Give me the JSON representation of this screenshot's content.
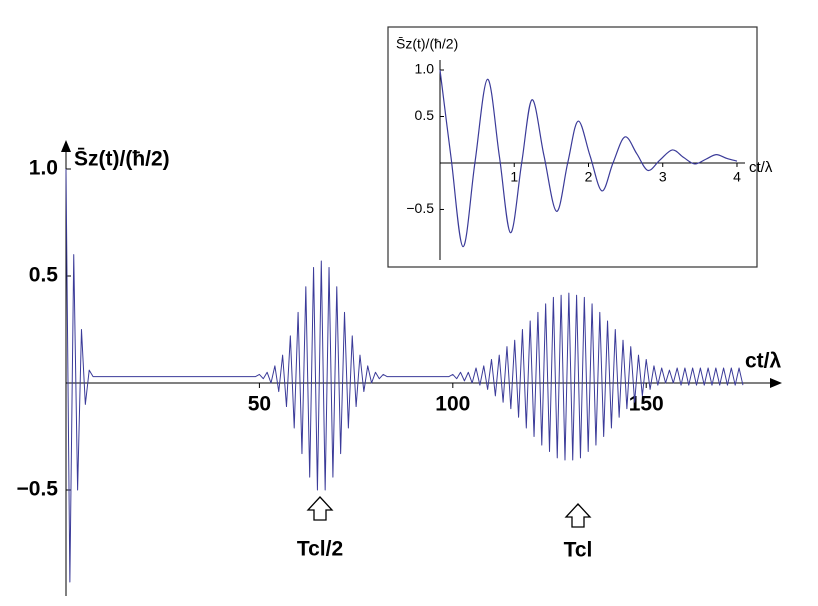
{
  "chart_data": [
    {
      "type": "line",
      "y_label": "S̄z(t)/(ħ/2)",
      "x_label": "ct/λ",
      "color": "#3b3b99",
      "x": [
        0,
        1,
        2,
        3,
        4,
        5,
        6,
        7,
        8,
        9,
        10,
        11,
        12,
        13,
        14,
        15,
        16,
        17,
        18,
        19,
        20,
        21,
        22,
        23,
        24,
        25,
        26,
        27,
        28,
        29,
        30,
        31,
        32,
        33,
        34,
        35,
        36,
        37,
        38,
        39,
        40,
        41,
        42,
        43,
        44,
        45,
        46,
        47,
        48,
        49,
        50,
        51,
        52,
        53,
        54,
        55,
        56,
        57,
        58,
        59,
        60,
        61,
        62,
        63,
        64,
        65,
        66,
        67,
        68,
        69,
        70,
        71,
        72,
        73,
        74,
        75,
        76,
        77,
        78,
        79,
        80,
        81,
        82,
        83,
        84,
        85,
        86,
        87,
        88,
        89,
        90,
        91,
        92,
        93,
        94,
        95,
        96,
        97,
        98,
        99,
        100,
        101,
        102,
        103,
        104,
        105,
        106,
        107,
        108,
        109,
        110,
        111,
        112,
        113,
        114,
        115,
        116,
        117,
        118,
        119,
        120,
        121,
        122,
        123,
        124,
        125,
        126,
        127,
        128,
        129,
        130,
        131,
        132,
        133,
        134,
        135,
        136,
        137,
        138,
        139,
        140,
        141,
        142,
        143,
        144,
        145,
        146,
        147,
        148,
        149,
        150,
        151,
        152,
        153,
        154,
        155,
        156,
        157,
        158,
        159,
        160,
        161,
        162,
        163,
        164,
        165,
        166,
        167,
        168,
        169,
        170,
        171,
        172,
        173,
        174,
        175
      ],
      "values": [
        1.0,
        -0.93,
        0.6,
        -0.5,
        0.25,
        -0.1,
        0.06,
        0.03,
        0.03,
        0.03,
        0.03,
        0.03,
        0.03,
        0.03,
        0.03,
        0.03,
        0.03,
        0.03,
        0.03,
        0.03,
        0.03,
        0.03,
        0.03,
        0.03,
        0.03,
        0.03,
        0.03,
        0.03,
        0.03,
        0.03,
        0.03,
        0.03,
        0.03,
        0.03,
        0.03,
        0.03,
        0.03,
        0.03,
        0.03,
        0.03,
        0.03,
        0.03,
        0.03,
        0.03,
        0.03,
        0.03,
        0.03,
        0.03,
        0.03,
        0.03,
        0.04,
        0.02,
        0.05,
        0.0,
        0.08,
        -0.04,
        0.13,
        -0.11,
        0.22,
        -0.21,
        0.33,
        -0.33,
        0.45,
        -0.44,
        0.54,
        -0.5,
        0.57,
        -0.5,
        0.54,
        -0.44,
        0.45,
        -0.33,
        0.33,
        -0.21,
        0.22,
        -0.11,
        0.13,
        -0.04,
        0.08,
        0.0,
        0.05,
        0.02,
        0.04,
        0.03,
        0.03,
        0.03,
        0.03,
        0.03,
        0.03,
        0.03,
        0.03,
        0.03,
        0.03,
        0.03,
        0.03,
        0.03,
        0.03,
        0.03,
        0.03,
        0.03,
        0.04,
        0.02,
        0.05,
        0.01,
        0.05,
        0.0,
        0.07,
        -0.01,
        0.08,
        -0.03,
        0.11,
        -0.06,
        0.13,
        -0.09,
        0.17,
        -0.12,
        0.2,
        -0.16,
        0.25,
        -0.21,
        0.29,
        -0.25,
        0.33,
        -0.29,
        0.37,
        -0.32,
        0.4,
        -0.35,
        0.41,
        -0.36,
        0.42,
        -0.36,
        0.41,
        -0.35,
        0.4,
        -0.32,
        0.37,
        -0.29,
        0.33,
        -0.25,
        0.29,
        -0.21,
        0.25,
        -0.16,
        0.2,
        -0.12,
        0.17,
        -0.09,
        0.13,
        -0.06,
        0.11,
        -0.03,
        0.08,
        -0.01,
        0.07,
        0.0,
        0.06,
        0.0,
        0.07,
        -0.01,
        0.07,
        -0.01,
        0.07,
        -0.01,
        0.07,
        -0.01,
        0.07,
        -0.01,
        0.07,
        -0.01,
        0.07,
        -0.01,
        0.07,
        -0.01,
        0.07,
        -0.01
      ],
      "xlim": [
        0,
        182
      ],
      "ylim": [
        -0.95,
        1.1
      ],
      "xticks": [
        50,
        100,
        150
      ],
      "yticks": [
        {
          "value": -0.5,
          "label": "−0.5"
        },
        0.5,
        {
          "value": 1,
          "label": "1.0"
        }
      ],
      "annotations": [
        "Tcl/2",
        "Tcl"
      ]
    },
    {
      "type": "line",
      "y_label": "S̄z(t)/(ħ/2)",
      "x_label": "ct/λ",
      "color": "#3b3b99",
      "x": [
        0,
        0.15,
        0.31,
        0.47,
        0.64,
        0.8,
        0.95,
        1.1,
        1.24,
        1.4,
        1.57,
        1.72,
        1.86,
        2.02,
        2.18,
        2.33,
        2.49,
        2.65,
        2.8,
        2.96,
        3.13,
        3.28,
        3.43,
        3.58,
        3.72,
        3.86,
        4.0
      ],
      "values": [
        1.0,
        0.05,
        -0.9,
        0.0,
        0.9,
        0.07,
        -0.75,
        0.0,
        0.68,
        0.08,
        -0.52,
        0.0,
        0.45,
        0.08,
        -0.3,
        0.0,
        0.28,
        0.1,
        -0.08,
        0.03,
        0.14,
        0.06,
        -0.01,
        0.04,
        0.09,
        0.05,
        0.02
      ],
      "xlim": [
        0,
        4.1
      ],
      "ylim": [
        -1.05,
        1.1
      ],
      "xticks": [
        1,
        2,
        3,
        4
      ],
      "yticks": [
        {
          "value": -0.5,
          "label": "−0.5"
        },
        0.5,
        {
          "value": 1,
          "label": "1.0"
        }
      ]
    }
  ]
}
